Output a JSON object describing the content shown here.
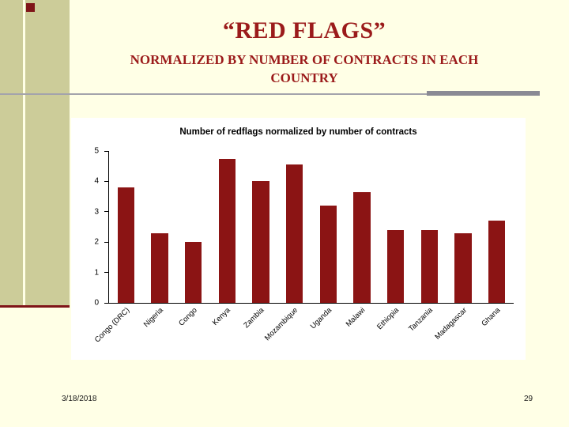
{
  "slide": {
    "title": "“RED FLAGS”",
    "subtitle_line1": "NORMALIZED BY NUMBER OF CONTRACTS IN EACH",
    "subtitle_line2": "COUNTRY",
    "footer_date": "3/18/2018",
    "page_number": "29"
  },
  "colors": {
    "slide_background": "#FFFFE6",
    "left_band": "#CCCC99",
    "accent_maroon": "#7F1418",
    "title_text": "#9B1B1B",
    "bar": "#8B1414",
    "divider_thin": "#A3A3AC",
    "divider_thick": "#8A8A94",
    "chart_background": "#FFFFFF"
  },
  "chart_data": {
    "type": "bar",
    "title": "Number of redflags normalized by number of contracts",
    "categories": [
      "Congo (DRC)",
      "Nigeria",
      "Congo",
      "Kenya",
      "Zambia",
      "Mozambique",
      "Uganda",
      "Malawi",
      "Ethiopia",
      "Tanzania",
      "Madagascar",
      "Ghana"
    ],
    "values": [
      3.8,
      2.3,
      2.0,
      4.75,
      4.0,
      4.55,
      3.2,
      3.65,
      2.4,
      2.4,
      2.3,
      2.7
    ],
    "xlabel": "",
    "ylabel": "",
    "ylim": [
      0,
      5
    ],
    "yticks": [
      0,
      1,
      2,
      3,
      4,
      5
    ],
    "bar_color": "#8B1414",
    "grid": false,
    "legend": false
  }
}
